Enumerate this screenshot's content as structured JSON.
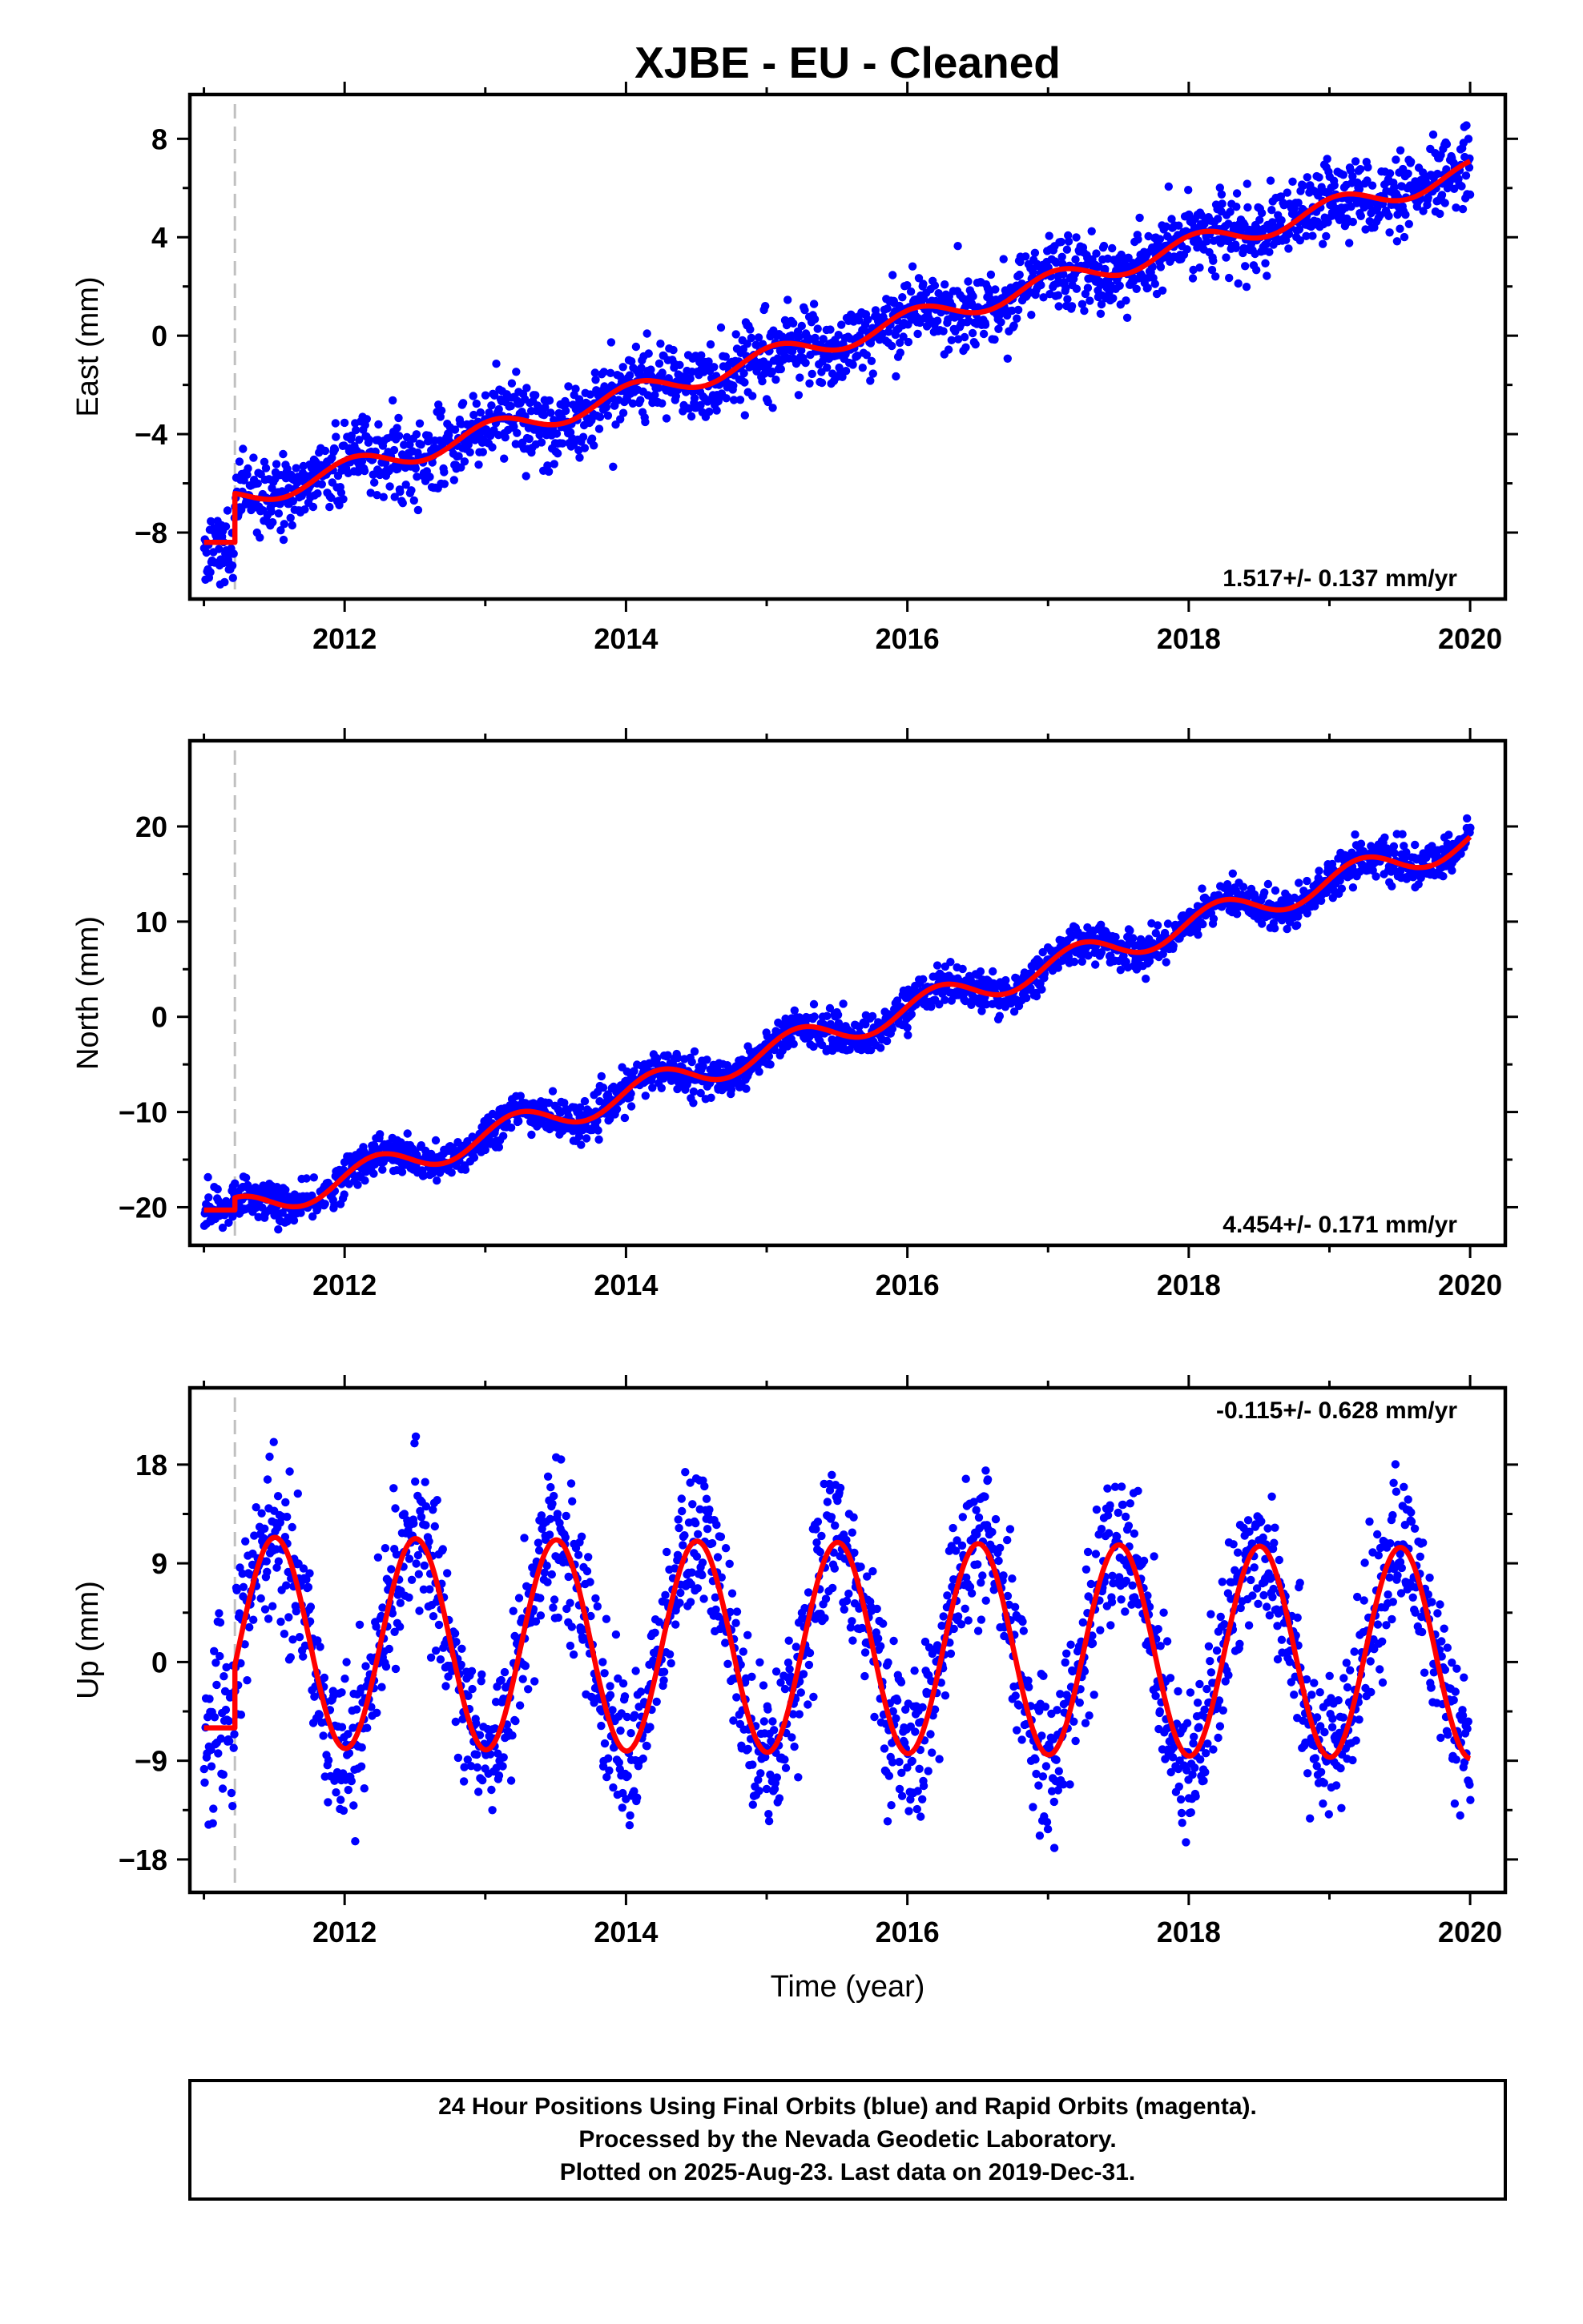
{
  "title": "XJBE  - EU - Cleaned",
  "colors": {
    "points": "#0000ff",
    "fit": "#ff0000",
    "event_line": "#c0c0c0"
  },
  "chart_data": [
    {
      "type": "scatter",
      "ylabel": "East (mm)",
      "xlabel": "",
      "xlim": [
        2010.9,
        2020.25
      ],
      "ylim": [
        -10.7,
        9.8
      ],
      "xticks": [
        2012,
        2014,
        2016,
        2018,
        2020
      ],
      "yticks": [
        -8,
        -4,
        0,
        4,
        8
      ],
      "event_line_x": 2011.22,
      "rate_text": "1.517+/- 0.137 mm/yr",
      "rate_position": "bottom-right",
      "data_start": 2011.0,
      "data_end": 2020.0,
      "series": [
        {
          "name": "daily positions",
          "style": "points",
          "model": {
            "offset": -6.65,
            "rate": 1.517,
            "ref_year": 2011.22,
            "annual_amp": 0.45,
            "annual_phase": 1.2,
            "noise_sd": 0.75,
            "pre_offset_value": -8.6
          }
        },
        {
          "name": "fit",
          "style": "line",
          "model": {
            "offset": -6.65,
            "rate": 1.517,
            "ref_year": 2011.22,
            "annual_amp": 0.45,
            "annual_phase": 1.2,
            "pre_offset_value": -8.4
          }
        }
      ]
    },
    {
      "type": "scatter",
      "ylabel": "North (mm)",
      "xlabel": "",
      "xlim": [
        2010.9,
        2020.25
      ],
      "ylim": [
        -24,
        29
      ],
      "xticks": [
        2012,
        2014,
        2016,
        2018,
        2020
      ],
      "yticks": [
        -20,
        -10,
        0,
        10,
        20
      ],
      "event_line_x": 2011.22,
      "rate_text": "4.454+/- 0.171 mm/yr",
      "rate_position": "bottom-right",
      "data_start": 2011.0,
      "data_end": 2020.0,
      "series": [
        {
          "name": "daily positions",
          "style": "points",
          "model": {
            "offset": -20.5,
            "rate": 4.454,
            "ref_year": 2011.22,
            "annual_amp": 1.5,
            "annual_phase": 0.2,
            "noise_sd": 1.0,
            "pre_offset_value": -20.3
          }
        },
        {
          "name": "fit",
          "style": "line",
          "model": {
            "offset": -20.5,
            "rate": 4.454,
            "ref_year": 2011.22,
            "annual_amp": 1.5,
            "annual_phase": 0.2,
            "pre_offset_value": -20.3
          }
        }
      ]
    },
    {
      "type": "scatter",
      "ylabel": "Up (mm)",
      "xlabel": "Time (year)",
      "xlim": [
        2010.9,
        2020.25
      ],
      "ylim": [
        -21,
        25
      ],
      "xticks": [
        2012,
        2014,
        2016,
        2018,
        2020
      ],
      "yticks": [
        -18,
        -9,
        0,
        9,
        18
      ],
      "event_line_x": 2011.22,
      "rate_text": "-0.115+/- 0.628 mm/yr",
      "rate_position": "top-right",
      "data_start": 2011.0,
      "data_end": 2020.0,
      "series": [
        {
          "name": "daily positions",
          "style": "points",
          "model": {
            "offset": 1.8,
            "rate": -0.115,
            "ref_year": 2011.22,
            "annual_amp": 9.6,
            "annual_phase": -1.6,
            "noise_sd": 3.4,
            "pre_offset_value": -6.0
          }
        },
        {
          "name": "fit",
          "style": "line",
          "model": {
            "offset": 1.8,
            "rate": -0.115,
            "ref_year": 2011.22,
            "annual_amp": 9.6,
            "annual_phase": -1.6,
            "pre_offset_value": -6.0
          }
        }
      ]
    }
  ],
  "footer": {
    "line1": "24 Hour Positions Using Final Orbits (blue) and Rapid Orbits (magenta).",
    "line2": "Processed by the Nevada Geodetic Laboratory.",
    "line3": "Plotted on 2025-Aug-23. Last data on 2019-Dec-31."
  }
}
